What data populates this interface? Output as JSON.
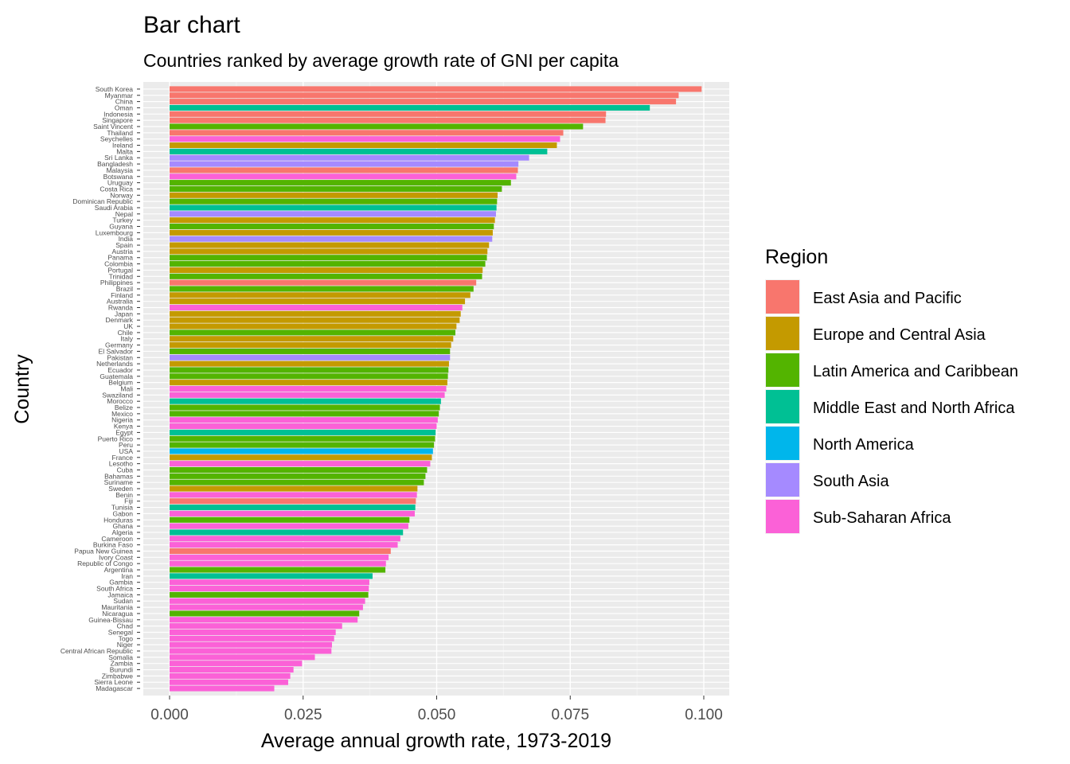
{
  "chart_data": {
    "type": "bar",
    "orientation": "horizontal",
    "title": "Bar chart",
    "subtitle": "Countries ranked by average growth rate of GNI per capita",
    "xlabel": "Average annual growth rate, 1973-2019",
    "ylabel": "Country",
    "xlim": [
      0,
      0.1
    ],
    "xticks": [
      "0.000",
      "0.025",
      "0.050",
      "0.075",
      "0.100"
    ],
    "grid": true,
    "legend": {
      "title": "Region",
      "placement": "right",
      "entries": [
        {
          "name": "East Asia and Pacific",
          "color": "#F8766D"
        },
        {
          "name": "Europe and Central Asia",
          "color": "#C49A00"
        },
        {
          "name": "Latin America and Caribbean",
          "color": "#53B400"
        },
        {
          "name": "Middle East and North Africa",
          "color": "#00C094"
        },
        {
          "name": "North America",
          "color": "#00B6EB"
        },
        {
          "name": "South Asia",
          "color": "#A58AFF"
        },
        {
          "name": "Sub-Saharan Africa",
          "color": "#FB61D7"
        }
      ]
    },
    "bars": [
      {
        "country": "South Korea",
        "value": 0.0996,
        "region": "East Asia and Pacific"
      },
      {
        "country": "Myanmar",
        "value": 0.0953,
        "region": "East Asia and Pacific"
      },
      {
        "country": "China",
        "value": 0.0948,
        "region": "East Asia and Pacific"
      },
      {
        "country": "Oman",
        "value": 0.0899,
        "region": "Middle East and North Africa"
      },
      {
        "country": "Indonesia",
        "value": 0.0817,
        "region": "East Asia and Pacific"
      },
      {
        "country": "Singapore",
        "value": 0.0816,
        "region": "East Asia and Pacific"
      },
      {
        "country": "Saint Vincent",
        "value": 0.0774,
        "region": "Latin America and Caribbean"
      },
      {
        "country": "Thailand",
        "value": 0.0737,
        "region": "East Asia and Pacific"
      },
      {
        "country": "Seychelles",
        "value": 0.0731,
        "region": "Sub-Saharan Africa"
      },
      {
        "country": "Ireland",
        "value": 0.0725,
        "region": "Europe and Central Asia"
      },
      {
        "country": "Malta",
        "value": 0.0707,
        "region": "Middle East and North Africa"
      },
      {
        "country": "Sri Lanka",
        "value": 0.0673,
        "region": "South Asia"
      },
      {
        "country": "Bangladesh",
        "value": 0.0653,
        "region": "South Asia"
      },
      {
        "country": "Malaysia",
        "value": 0.0652,
        "region": "East Asia and Pacific"
      },
      {
        "country": "Botswana",
        "value": 0.0649,
        "region": "Sub-Saharan Africa"
      },
      {
        "country": "Uruguay",
        "value": 0.0639,
        "region": "Latin America and Caribbean"
      },
      {
        "country": "Costa Rica",
        "value": 0.0622,
        "region": "Latin America and Caribbean"
      },
      {
        "country": "Norway",
        "value": 0.0614,
        "region": "Europe and Central Asia"
      },
      {
        "country": "Dominican Republic",
        "value": 0.0613,
        "region": "Latin America and Caribbean"
      },
      {
        "country": "Saudi Arabia",
        "value": 0.0612,
        "region": "Middle East and North Africa"
      },
      {
        "country": "Nepal",
        "value": 0.0611,
        "region": "South Asia"
      },
      {
        "country": "Turkey",
        "value": 0.0609,
        "region": "Europe and Central Asia"
      },
      {
        "country": "Guyana",
        "value": 0.0607,
        "region": "Latin America and Caribbean"
      },
      {
        "country": "Luxembourg",
        "value": 0.0605,
        "region": "Europe and Central Asia"
      },
      {
        "country": "India",
        "value": 0.0604,
        "region": "South Asia"
      },
      {
        "country": "Spain",
        "value": 0.0598,
        "region": "Europe and Central Asia"
      },
      {
        "country": "Austria",
        "value": 0.0595,
        "region": "Europe and Central Asia"
      },
      {
        "country": "Panama",
        "value": 0.0594,
        "region": "Latin America and Caribbean"
      },
      {
        "country": "Colombia",
        "value": 0.0591,
        "region": "Latin America and Caribbean"
      },
      {
        "country": "Portugal",
        "value": 0.0586,
        "region": "Europe and Central Asia"
      },
      {
        "country": "Trinidad",
        "value": 0.0585,
        "region": "Latin America and Caribbean"
      },
      {
        "country": "Philippines",
        "value": 0.0574,
        "region": "East Asia and Pacific"
      },
      {
        "country": "Brazil",
        "value": 0.0569,
        "region": "Latin America and Caribbean"
      },
      {
        "country": "Finland",
        "value": 0.0563,
        "region": "Europe and Central Asia"
      },
      {
        "country": "Australia",
        "value": 0.0553,
        "region": "Europe and Central Asia"
      },
      {
        "country": "Rwanda",
        "value": 0.0548,
        "region": "Sub-Saharan Africa"
      },
      {
        "country": "Japan",
        "value": 0.0545,
        "region": "Europe and Central Asia"
      },
      {
        "country": "Denmark",
        "value": 0.0543,
        "region": "Europe and Central Asia"
      },
      {
        "country": "UK",
        "value": 0.0537,
        "region": "Europe and Central Asia"
      },
      {
        "country": "Chile",
        "value": 0.0535,
        "region": "Latin America and Caribbean"
      },
      {
        "country": "Italy",
        "value": 0.0531,
        "region": "Europe and Central Asia"
      },
      {
        "country": "Germany",
        "value": 0.0527,
        "region": "Europe and Central Asia"
      },
      {
        "country": "El Salvador",
        "value": 0.0525,
        "region": "Latin America and Caribbean"
      },
      {
        "country": "Pakistan",
        "value": 0.0525,
        "region": "South Asia"
      },
      {
        "country": "Netherlands",
        "value": 0.0523,
        "region": "Europe and Central Asia"
      },
      {
        "country": "Ecuador",
        "value": 0.0522,
        "region": "Latin America and Caribbean"
      },
      {
        "country": "Guatemala",
        "value": 0.0521,
        "region": "Latin America and Caribbean"
      },
      {
        "country": "Belgium",
        "value": 0.052,
        "region": "Europe and Central Asia"
      },
      {
        "country": "Mali",
        "value": 0.0518,
        "region": "Sub-Saharan Africa"
      },
      {
        "country": "Swaziland",
        "value": 0.0515,
        "region": "Sub-Saharan Africa"
      },
      {
        "country": "Morocco",
        "value": 0.0508,
        "region": "Middle East and North Africa"
      },
      {
        "country": "Belize",
        "value": 0.0506,
        "region": "Latin America and Caribbean"
      },
      {
        "country": "Mexico",
        "value": 0.0504,
        "region": "Latin America and Caribbean"
      },
      {
        "country": "Nigeria",
        "value": 0.0502,
        "region": "Sub-Saharan Africa"
      },
      {
        "country": "Kenya",
        "value": 0.05,
        "region": "Sub-Saharan Africa"
      },
      {
        "country": "Egypt",
        "value": 0.0498,
        "region": "Middle East and North Africa"
      },
      {
        "country": "Puerto Rico",
        "value": 0.0497,
        "region": "Latin America and Caribbean"
      },
      {
        "country": "Peru",
        "value": 0.0495,
        "region": "Latin America and Caribbean"
      },
      {
        "country": "USA",
        "value": 0.0493,
        "region": "North America"
      },
      {
        "country": "France",
        "value": 0.0491,
        "region": "Europe and Central Asia"
      },
      {
        "country": "Lesotho",
        "value": 0.0488,
        "region": "Sub-Saharan Africa"
      },
      {
        "country": "Cuba",
        "value": 0.0482,
        "region": "Latin America and Caribbean"
      },
      {
        "country": "Bahamas",
        "value": 0.0479,
        "region": "Latin America and Caribbean"
      },
      {
        "country": "Suriname",
        "value": 0.0476,
        "region": "Latin America and Caribbean"
      },
      {
        "country": "Sweden",
        "value": 0.0464,
        "region": "Europe and Central Asia"
      },
      {
        "country": "Benin",
        "value": 0.0463,
        "region": "Sub-Saharan Africa"
      },
      {
        "country": "Fiji",
        "value": 0.0461,
        "region": "East Asia and Pacific"
      },
      {
        "country": "Tunisia",
        "value": 0.046,
        "region": "Middle East and North Africa"
      },
      {
        "country": "Gabon",
        "value": 0.0459,
        "region": "Sub-Saharan Africa"
      },
      {
        "country": "Honduras",
        "value": 0.0449,
        "region": "Latin America and Caribbean"
      },
      {
        "country": "Ghana",
        "value": 0.0447,
        "region": "Sub-Saharan Africa"
      },
      {
        "country": "Algeria",
        "value": 0.0437,
        "region": "Middle East and North Africa"
      },
      {
        "country": "Cameroon",
        "value": 0.0432,
        "region": "Sub-Saharan Africa"
      },
      {
        "country": "Burkina Faso",
        "value": 0.0427,
        "region": "Sub-Saharan Africa"
      },
      {
        "country": "Papua New Guinea",
        "value": 0.0414,
        "region": "East Asia and Pacific"
      },
      {
        "country": "Ivory Coast",
        "value": 0.041,
        "region": "Sub-Saharan Africa"
      },
      {
        "country": "Republic of Congo",
        "value": 0.0405,
        "region": "Sub-Saharan Africa"
      },
      {
        "country": "Argentina",
        "value": 0.0404,
        "region": "Latin America and Caribbean"
      },
      {
        "country": "Iran",
        "value": 0.038,
        "region": "Middle East and North Africa"
      },
      {
        "country": "Gambia",
        "value": 0.0374,
        "region": "Sub-Saharan Africa"
      },
      {
        "country": "South Africa",
        "value": 0.0373,
        "region": "Sub-Saharan Africa"
      },
      {
        "country": "Jamaica",
        "value": 0.0372,
        "region": "Latin America and Caribbean"
      },
      {
        "country": "Sudan",
        "value": 0.0366,
        "region": "Sub-Saharan Africa"
      },
      {
        "country": "Mauritania",
        "value": 0.0362,
        "region": "Sub-Saharan Africa"
      },
      {
        "country": "Nicaragua",
        "value": 0.0355,
        "region": "Latin America and Caribbean"
      },
      {
        "country": "Guinea-Bissau",
        "value": 0.0352,
        "region": "Sub-Saharan Africa"
      },
      {
        "country": "Chad",
        "value": 0.0323,
        "region": "Sub-Saharan Africa"
      },
      {
        "country": "Senegal",
        "value": 0.0311,
        "region": "Sub-Saharan Africa"
      },
      {
        "country": "Togo",
        "value": 0.0308,
        "region": "Sub-Saharan Africa"
      },
      {
        "country": "Niger",
        "value": 0.0304,
        "region": "Sub-Saharan Africa"
      },
      {
        "country": "Central African Republic",
        "value": 0.0303,
        "region": "Sub-Saharan Africa"
      },
      {
        "country": "Somalia",
        "value": 0.0272,
        "region": "Sub-Saharan Africa"
      },
      {
        "country": "Zambia",
        "value": 0.0248,
        "region": "Sub-Saharan Africa"
      },
      {
        "country": "Burundi",
        "value": 0.0232,
        "region": "Sub-Saharan Africa"
      },
      {
        "country": "Zimbabwe",
        "value": 0.0226,
        "region": "Sub-Saharan Africa"
      },
      {
        "country": "Sierra Leone",
        "value": 0.0222,
        "region": "Sub-Saharan Africa"
      },
      {
        "country": "Madagascar",
        "value": 0.0196,
        "region": "Sub-Saharan Africa"
      }
    ]
  }
}
